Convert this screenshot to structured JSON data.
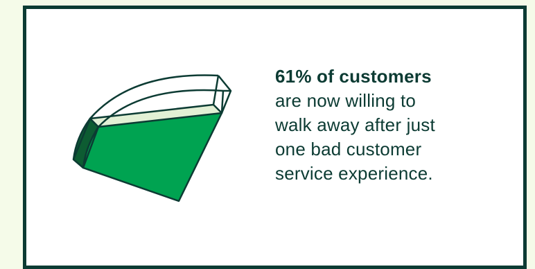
{
  "stat": {
    "headline": "61% of customers",
    "lines": [
      "are now willing to",
      "walk away after just",
      "one bad customer",
      "service experience."
    ]
  },
  "colors": {
    "background": "#f5fbe9",
    "border": "#0c3b33",
    "text": "#0c3b33",
    "fill_green": "#00a351",
    "dark_green": "#0d5c32",
    "light_green": "#e2f0d5"
  },
  "illustration": {
    "icon": "pie-slice-icon",
    "percent": 61
  }
}
